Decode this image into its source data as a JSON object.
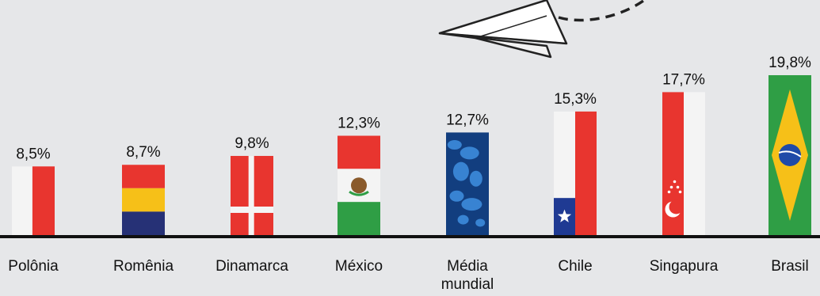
{
  "chart_data": {
    "type": "bar",
    "title": "",
    "xlabel": "",
    "ylabel": "",
    "ylim": [
      0,
      19.8
    ],
    "grid": false,
    "categories": [
      "Polônia",
      "Romênia",
      "Dinamarca",
      "México",
      "Média\nmundial",
      "Chile",
      "Singapura",
      "Brasil"
    ],
    "values": [
      8.5,
      8.7,
      9.8,
      12.3,
      12.7,
      15.3,
      17.7,
      19.8
    ],
    "value_labels": [
      "8,5%",
      "8,7%",
      "9,8%",
      "12,3%",
      "12,7%",
      "15,3%",
      "17,7%",
      "19,8%"
    ],
    "bar_fills": [
      "flag-poland",
      "flag-romania",
      "flag-denmark",
      "flag-mexico",
      "world-map",
      "flag-chile",
      "flag-singapore",
      "flag-brazil"
    ]
  },
  "colors": {
    "background": "#e6e7e9",
    "axis": "#111111",
    "red": "#e8352f",
    "white": "#f4f4f4",
    "yellow": "#f6c018",
    "blue": "#263176",
    "green": "#2f9e45",
    "map_blue": "#1a4f9a",
    "text": "#111111"
  },
  "decoration": {
    "icon": "paper-plane-icon"
  }
}
